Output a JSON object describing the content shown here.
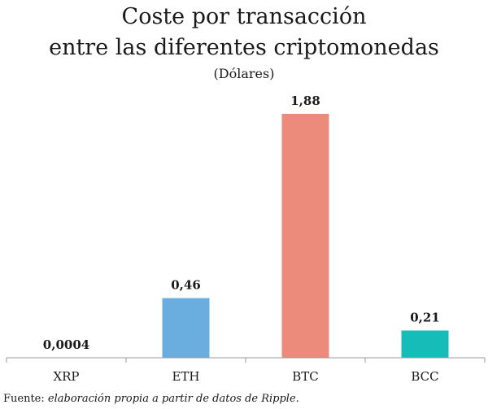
{
  "chart_data": {
    "type": "bar",
    "title_line1": "Coste por transacción",
    "title_line2": "entre las diferentes criptomonedas",
    "subtitle": "(Dólares)",
    "categories": [
      "XRP",
      "ETH",
      "BTC",
      "BCC"
    ],
    "values": [
      0.0004,
      0.46,
      1.88,
      0.21
    ],
    "value_labels": [
      "0,0004",
      "0,46",
      "1,88",
      "0,21"
    ],
    "colors": [
      "#6aaee0",
      "#6aaee0",
      "#ec8a7c",
      "#15bcb8"
    ],
    "xlabel": "",
    "ylabel": "",
    "ylim": [
      0,
      1.88
    ],
    "grid": false,
    "legend": "none"
  },
  "source": {
    "prefix": "Fuente: ",
    "text": "elaboración propia a partir de datos de Ripple."
  }
}
